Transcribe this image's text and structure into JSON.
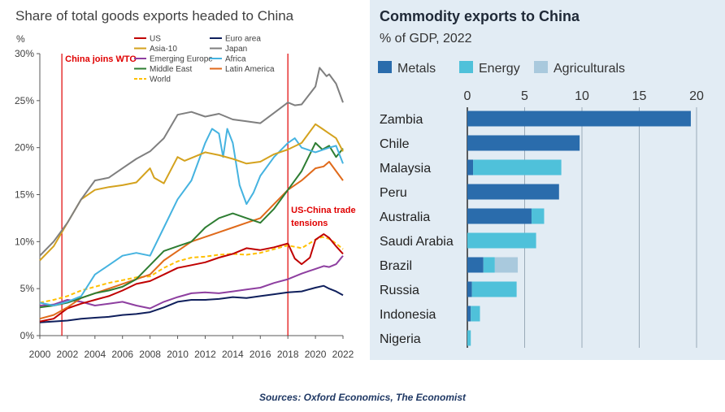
{
  "chart_data": [
    {
      "type": "line",
      "title": "Share of total goods exports headed to China",
      "ylabel": "%",
      "x_ticks": [
        "2000",
        "2002",
        "2004",
        "2006",
        "2008",
        "2010",
        "2012",
        "2014",
        "2016",
        "2018",
        "2020",
        "2022"
      ],
      "y_ticks": [
        "0%",
        "5%",
        "10%",
        "15%",
        "20%",
        "25%",
        "30%"
      ],
      "xlim": [
        2000,
        2022
      ],
      "ylim": [
        0,
        30
      ],
      "grid": false,
      "legend": "top-center",
      "annotations": [
        {
          "text": "China joins WTO",
          "x": 2001.6
        },
        {
          "text": "US-China trade tensions",
          "x": 2018
        }
      ],
      "series": [
        {
          "name": "US",
          "color": "#c00000",
          "dashed": false,
          "points": [
            [
              2000,
              1.5
            ],
            [
              2001,
              1.8
            ],
            [
              2002,
              2.9
            ],
            [
              2003,
              3.4
            ],
            [
              2004,
              3.8
            ],
            [
              2005,
              4.2
            ],
            [
              2006,
              4.8
            ],
            [
              2007,
              5.5
            ],
            [
              2008,
              5.8
            ],
            [
              2009,
              6.5
            ],
            [
              2010,
              7.2
            ],
            [
              2011,
              7.5
            ],
            [
              2012,
              7.8
            ],
            [
              2013,
              8.3
            ],
            [
              2014,
              8.7
            ],
            [
              2015,
              9.3
            ],
            [
              2016,
              9.1
            ],
            [
              2017,
              9.4
            ],
            [
              2018,
              9.8
            ],
            [
              2018.5,
              8.2
            ],
            [
              2019,
              7.6
            ],
            [
              2019.6,
              8.3
            ],
            [
              2020,
              10.2
            ],
            [
              2020.6,
              10.8
            ],
            [
              2021,
              10.4
            ],
            [
              2021.5,
              9.5
            ],
            [
              2022,
              8.7
            ]
          ]
        },
        {
          "name": "Euro area",
          "color": "#0f1f5c",
          "dashed": false,
          "points": [
            [
              2000,
              1.4
            ],
            [
              2001,
              1.5
            ],
            [
              2002,
              1.6
            ],
            [
              2003,
              1.8
            ],
            [
              2004,
              1.9
            ],
            [
              2005,
              2.0
            ],
            [
              2006,
              2.2
            ],
            [
              2007,
              2.3
            ],
            [
              2008,
              2.5
            ],
            [
              2009,
              3.0
            ],
            [
              2010,
              3.6
            ],
            [
              2011,
              3.8
            ],
            [
              2012,
              3.8
            ],
            [
              2013,
              3.9
            ],
            [
              2014,
              4.1
            ],
            [
              2015,
              4.0
            ],
            [
              2016,
              4.2
            ],
            [
              2017,
              4.4
            ],
            [
              2018,
              4.6
            ],
            [
              2019,
              4.7
            ],
            [
              2020,
              5.1
            ],
            [
              2020.6,
              5.3
            ],
            [
              2021,
              5.0
            ],
            [
              2021.5,
              4.7
            ],
            [
              2022,
              4.3
            ]
          ]
        },
        {
          "name": "Asia-10",
          "color": "#d4a21e",
          "dashed": false,
          "points": [
            [
              2000,
              8.0
            ],
            [
              2001,
              9.5
            ],
            [
              2002,
              12.0
            ],
            [
              2003,
              14.5
            ],
            [
              2004,
              15.5
            ],
            [
              2005,
              15.8
            ],
            [
              2006,
              16.0
            ],
            [
              2007,
              16.3
            ],
            [
              2008,
              17.8
            ],
            [
              2008.3,
              16.8
            ],
            [
              2009,
              16.2
            ],
            [
              2010,
              19.0
            ],
            [
              2010.5,
              18.6
            ],
            [
              2011,
              18.9
            ],
            [
              2012,
              19.5
            ],
            [
              2013,
              19.2
            ],
            [
              2014,
              18.8
            ],
            [
              2015,
              18.3
            ],
            [
              2016,
              18.5
            ],
            [
              2017,
              19.3
            ],
            [
              2018,
              19.8
            ],
            [
              2019,
              20.5
            ],
            [
              2020,
              22.5
            ],
            [
              2020.5,
              22.0
            ],
            [
              2021,
              21.5
            ],
            [
              2021.5,
              21.0
            ],
            [
              2022,
              19.6
            ]
          ]
        },
        {
          "name": "Japan",
          "color": "#7f7f7f",
          "dashed": false,
          "points": [
            [
              2000,
              8.5
            ],
            [
              2001,
              10.0
            ],
            [
              2002,
              12.0
            ],
            [
              2003,
              14.5
            ],
            [
              2004,
              16.5
            ],
            [
              2005,
              16.8
            ],
            [
              2006,
              17.8
            ],
            [
              2007,
              18.8
            ],
            [
              2008,
              19.6
            ],
            [
              2009,
              21.0
            ],
            [
              2010,
              23.5
            ],
            [
              2011,
              23.8
            ],
            [
              2012,
              23.3
            ],
            [
              2013,
              23.6
            ],
            [
              2014,
              23.0
            ],
            [
              2015,
              22.8
            ],
            [
              2016,
              22.6
            ],
            [
              2017,
              23.7
            ],
            [
              2018,
              24.8
            ],
            [
              2018.5,
              24.5
            ],
            [
              2019,
              24.6
            ],
            [
              2020,
              26.5
            ],
            [
              2020.3,
              28.5
            ],
            [
              2020.8,
              27.6
            ],
            [
              2021,
              27.8
            ],
            [
              2021.5,
              26.8
            ],
            [
              2022,
              24.8
            ]
          ]
        },
        {
          "name": "Emerging Europe",
          "color": "#8e3fa0",
          "dashed": false,
          "points": [
            [
              2000,
              3.2
            ],
            [
              2001,
              3.3
            ],
            [
              2002,
              3.8
            ],
            [
              2003,
              3.6
            ],
            [
              2004,
              3.2
            ],
            [
              2005,
              3.4
            ],
            [
              2006,
              3.6
            ],
            [
              2007,
              3.2
            ],
            [
              2008,
              2.9
            ],
            [
              2009,
              3.6
            ],
            [
              2010,
              4.1
            ],
            [
              2011,
              4.5
            ],
            [
              2012,
              4.6
            ],
            [
              2013,
              4.5
            ],
            [
              2014,
              4.7
            ],
            [
              2015,
              4.9
            ],
            [
              2016,
              5.1
            ],
            [
              2017,
              5.6
            ],
            [
              2018,
              6.0
            ],
            [
              2019,
              6.6
            ],
            [
              2020,
              7.1
            ],
            [
              2020.6,
              7.4
            ],
            [
              2021,
              7.3
            ],
            [
              2021.5,
              7.6
            ],
            [
              2022,
              8.5
            ]
          ]
        },
        {
          "name": "Africa",
          "color": "#45b3e0",
          "dashed": false,
          "points": [
            [
              2000,
              3.5
            ],
            [
              2001,
              3.2
            ],
            [
              2002,
              3.6
            ],
            [
              2003,
              4.2
            ],
            [
              2004,
              6.5
            ],
            [
              2005,
              7.5
            ],
            [
              2006,
              8.5
            ],
            [
              2007,
              8.8
            ],
            [
              2008,
              8.5
            ],
            [
              2009,
              11.5
            ],
            [
              2010,
              14.5
            ],
            [
              2011,
              16.5
            ],
            [
              2012,
              20.5
            ],
            [
              2012.5,
              22.0
            ],
            [
              2013,
              21.5
            ],
            [
              2013.3,
              19.0
            ],
            [
              2013.6,
              22.0
            ],
            [
              2014,
              20.5
            ],
            [
              2014.5,
              16.0
            ],
            [
              2015,
              14.0
            ],
            [
              2015.5,
              15.2
            ],
            [
              2016,
              17.0
            ],
            [
              2017,
              19.0
            ],
            [
              2018,
              20.5
            ],
            [
              2018.5,
              21.0
            ],
            [
              2019,
              20.0
            ],
            [
              2020,
              19.5
            ],
            [
              2021,
              20.0
            ],
            [
              2021.5,
              20.2
            ],
            [
              2022,
              18.3
            ]
          ]
        },
        {
          "name": "Middle East",
          "color": "#2e7d32",
          "dashed": false,
          "points": [
            [
              2000,
              3.0
            ],
            [
              2001,
              3.2
            ],
            [
              2002,
              3.5
            ],
            [
              2003,
              4.0
            ],
            [
              2004,
              4.5
            ],
            [
              2005,
              4.8
            ],
            [
              2006,
              5.2
            ],
            [
              2007,
              6.0
            ],
            [
              2008,
              7.5
            ],
            [
              2009,
              9.0
            ],
            [
              2010,
              9.5
            ],
            [
              2011,
              10.0
            ],
            [
              2012,
              11.5
            ],
            [
              2013,
              12.5
            ],
            [
              2014,
              13.0
            ],
            [
              2015,
              12.5
            ],
            [
              2016,
              12.0
            ],
            [
              2017,
              13.5
            ],
            [
              2018,
              15.5
            ],
            [
              2019,
              17.5
            ],
            [
              2020,
              20.5
            ],
            [
              2020.5,
              19.8
            ],
            [
              2021,
              20.2
            ],
            [
              2021.5,
              19.0
            ],
            [
              2022,
              19.9
            ]
          ]
        },
        {
          "name": "Latin America",
          "color": "#e06a1b",
          "dashed": false,
          "points": [
            [
              2000,
              1.8
            ],
            [
              2001,
              2.2
            ],
            [
              2002,
              3.0
            ],
            [
              2003,
              4.0
            ],
            [
              2004,
              4.5
            ],
            [
              2005,
              5.0
            ],
            [
              2006,
              5.5
            ],
            [
              2007,
              6.0
            ],
            [
              2008,
              6.5
            ],
            [
              2009,
              8.0
            ],
            [
              2010,
              9.0
            ],
            [
              2011,
              10.0
            ],
            [
              2012,
              10.5
            ],
            [
              2013,
              11.0
            ],
            [
              2014,
              11.5
            ],
            [
              2015,
              12.0
            ],
            [
              2016,
              12.5
            ],
            [
              2017,
              14.0
            ],
            [
              2018,
              15.5
            ],
            [
              2019,
              16.5
            ],
            [
              2020,
              17.8
            ],
            [
              2020.6,
              18.0
            ],
            [
              2021,
              18.5
            ],
            [
              2021.5,
              17.5
            ],
            [
              2022,
              16.5
            ]
          ]
        },
        {
          "name": "World",
          "color": "#ffc000",
          "dashed": true,
          "points": [
            [
              2000,
              3.5
            ],
            [
              2001,
              3.8
            ],
            [
              2002,
              4.2
            ],
            [
              2003,
              4.8
            ],
            [
              2004,
              5.2
            ],
            [
              2005,
              5.6
            ],
            [
              2006,
              5.9
            ],
            [
              2007,
              6.2
            ],
            [
              2008,
              6.3
            ],
            [
              2009,
              7.2
            ],
            [
              2010,
              7.9
            ],
            [
              2011,
              8.3
            ],
            [
              2012,
              8.4
            ],
            [
              2013,
              8.6
            ],
            [
              2014,
              8.7
            ],
            [
              2015,
              8.6
            ],
            [
              2016,
              8.8
            ],
            [
              2017,
              9.2
            ],
            [
              2018,
              9.6
            ],
            [
              2019,
              9.3
            ],
            [
              2020,
              10.2
            ],
            [
              2020.5,
              10.5
            ],
            [
              2021,
              10.3
            ],
            [
              2021.5,
              9.8
            ],
            [
              2022,
              9.2
            ]
          ]
        }
      ]
    },
    {
      "type": "bar",
      "title": "Commodity exports to China",
      "subtitle": "% of GDP, 2022",
      "x_ticks": [
        "0",
        "5",
        "10",
        "15",
        "20"
      ],
      "xlim": [
        0,
        20
      ],
      "orientation": "horizontal",
      "stacked": true,
      "legend": "top-left",
      "categories": [
        "Zambia",
        "Chile",
        "Malaysia",
        "Peru",
        "Australia",
        "Saudi Arabia",
        "Brazil",
        "Russia",
        "Indonesia",
        "Nigeria"
      ],
      "series": [
        {
          "name": "Metals",
          "color": "#2a6cac",
          "values": [
            19.5,
            9.8,
            0.5,
            8.0,
            5.6,
            0.0,
            1.4,
            0.4,
            0.3,
            0.0
          ]
        },
        {
          "name": "Energy",
          "color": "#4fc1da",
          "values": [
            0.0,
            0.0,
            7.7,
            0.0,
            1.1,
            6.0,
            1.0,
            3.9,
            0.8,
            0.3
          ]
        },
        {
          "name": "Agriculturals",
          "color": "#a9c9dd",
          "values": [
            0.0,
            0.0,
            0.0,
            0.0,
            0.0,
            0.0,
            2.0,
            0.0,
            0.0,
            0.0
          ]
        }
      ]
    }
  ],
  "source": "Sources: Oxford Economics, The Economist"
}
